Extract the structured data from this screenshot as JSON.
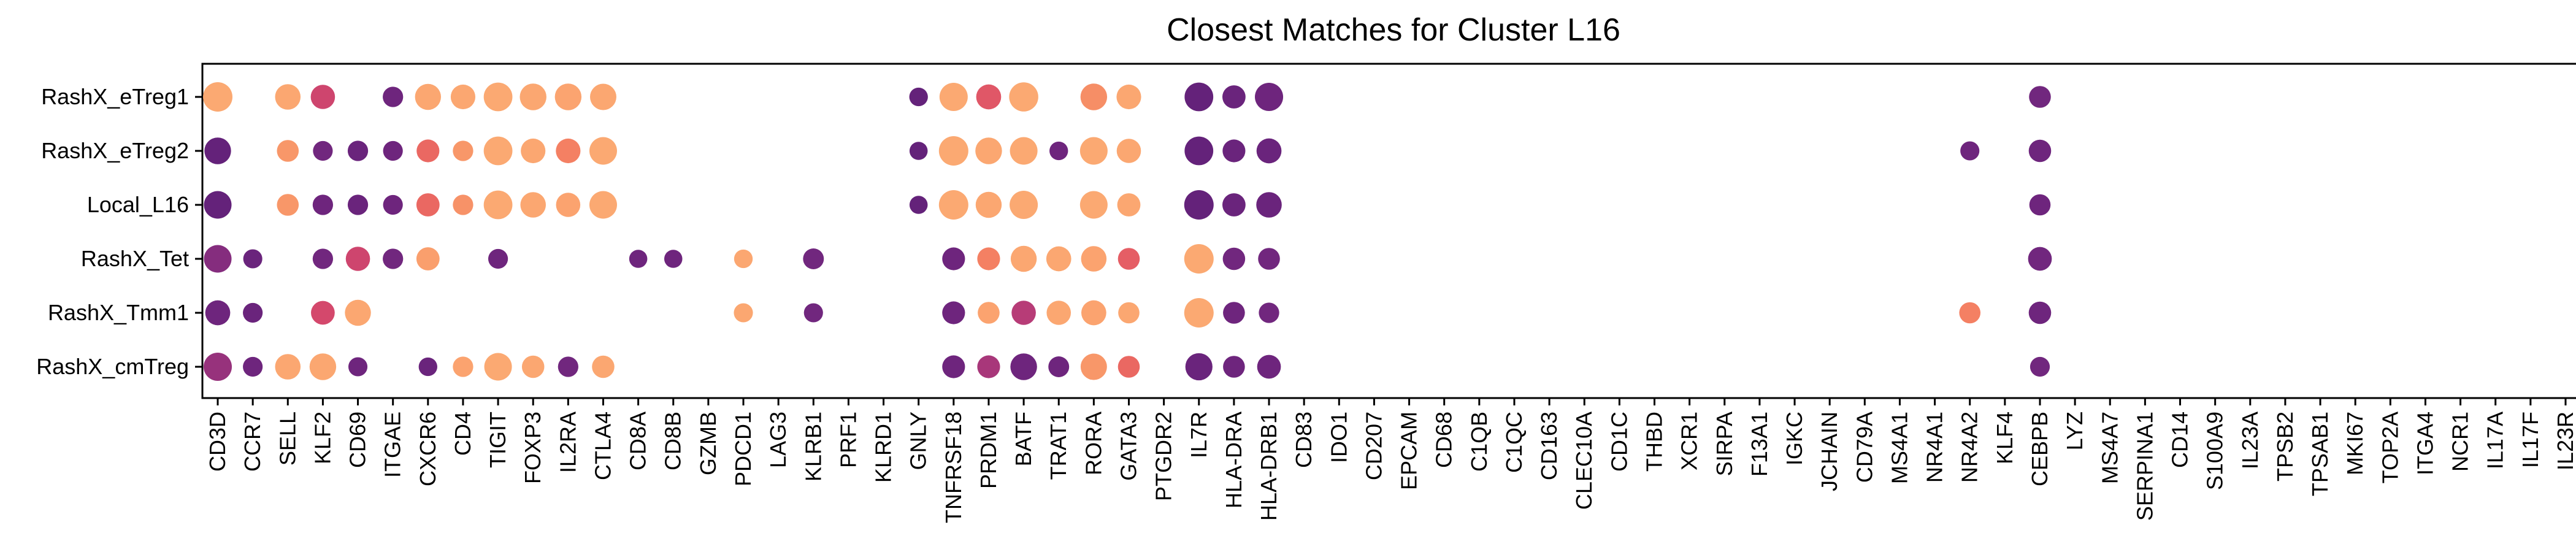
{
  "chart_data": {
    "type": "scatter",
    "title": "Closest Matches for Cluster L16",
    "xlabel": "",
    "ylabel": "",
    "rows": [
      "RashX_eTreg1",
      "RashX_eTreg2",
      "Local_L16",
      "RashX_Tet",
      "RashX_Tmm1",
      "RashX_cmTreg"
    ],
    "columns": [
      "CD3D",
      "CCR7",
      "SELL",
      "KLF2",
      "CD69",
      "ITGAE",
      "CXCR6",
      "CD4",
      "TIGIT",
      "FOXP3",
      "IL2RA",
      "CTLA4",
      "CD8A",
      "CD8B",
      "GZMB",
      "PDCD1",
      "LAG3",
      "KLRB1",
      "PRF1",
      "KLRD1",
      "GNLY",
      "TNFRSF18",
      "PRDM1",
      "BATF",
      "TRAT1",
      "RORA",
      "GATA3",
      "PTGDR2",
      "IL7R",
      "HLA-DRA",
      "HLA-DRB1",
      "CD83",
      "IDO1",
      "CD207",
      "EPCAM",
      "CD68",
      "C1QB",
      "C1QC",
      "CD163",
      "CLEC10A",
      "CD1C",
      "THBD",
      "XCR1",
      "SIRPA",
      "F13A1",
      "IGKC",
      "JCHAIN",
      "CD79A",
      "MS4A1",
      "NR4A1",
      "NR4A2",
      "KLF4",
      "CEBPB",
      "LYZ",
      "MS4A7",
      "SERPINA1",
      "CD14",
      "S100A9",
      "IL23A",
      "TPSB2",
      "TPSAB1",
      "MKI67",
      "TOP2A",
      "ITGA4",
      "NCR1",
      "IL17A",
      "IL17F",
      "IL23R"
    ],
    "encoding": {
      "size": "fraction of cells expressing (0-1)",
      "color": "mean expression (0 = dark purple, 1 = light orange)",
      "palette": [
        "#5b1e78",
        "#7a2a80",
        "#b33a78",
        "#d94a6a",
        "#f1745f",
        "#f99a6a",
        "#fcac74"
      ]
    },
    "points": [
      {
        "row": "RashX_eTreg1",
        "col": "CD3D",
        "size": 1.0,
        "color": 0.97
      },
      {
        "row": "RashX_eTreg1",
        "col": "SELL",
        "size": 0.75,
        "color": 0.95
      },
      {
        "row": "RashX_eTreg1",
        "col": "KLF2",
        "size": 0.68,
        "color": 0.45
      },
      {
        "row": "RashX_eTreg1",
        "col": "ITGAE",
        "size": 0.48,
        "color": 0.1
      },
      {
        "row": "RashX_eTreg1",
        "col": "CXCR6",
        "size": 0.78,
        "color": 0.95
      },
      {
        "row": "RashX_eTreg1",
        "col": "CD4",
        "size": 0.7,
        "color": 0.95
      },
      {
        "row": "RashX_eTreg1",
        "col": "TIGIT",
        "size": 0.95,
        "color": 0.97
      },
      {
        "row": "RashX_eTreg1",
        "col": "FOXP3",
        "size": 0.82,
        "color": 0.95
      },
      {
        "row": "RashX_eTreg1",
        "col": "IL2RA",
        "size": 0.82,
        "color": 0.93
      },
      {
        "row": "RashX_eTreg1",
        "col": "CTLA4",
        "size": 0.8,
        "color": 0.95
      },
      {
        "row": "RashX_eTreg1",
        "col": "GNLY",
        "size": 0.4,
        "color": 0.05
      },
      {
        "row": "RashX_eTreg1",
        "col": "TNFRSF18",
        "size": 0.92,
        "color": 0.97
      },
      {
        "row": "RashX_eTreg1",
        "col": "PRDM1",
        "size": 0.72,
        "color": 0.55
      },
      {
        "row": "RashX_eTreg1",
        "col": "BATF",
        "size": 0.98,
        "color": 0.97
      },
      {
        "row": "RashX_eTreg1",
        "col": "RORA",
        "size": 0.82,
        "color": 0.78
      },
      {
        "row": "RashX_eTreg1",
        "col": "GATA3",
        "size": 0.7,
        "color": 0.95
      },
      {
        "row": "RashX_eTreg1",
        "col": "IL7R",
        "size": 0.95,
        "color": 0.05
      },
      {
        "row": "RashX_eTreg1",
        "col": "HLA-DRA",
        "size": 0.62,
        "color": 0.08
      },
      {
        "row": "RashX_eTreg1",
        "col": "HLA-DRB1",
        "size": 0.92,
        "color": 0.1
      },
      {
        "row": "RashX_eTreg1",
        "col": "CEBPB",
        "size": 0.55,
        "color": 0.12
      },
      {
        "row": "RashX_eTreg2",
        "col": "CD3D",
        "size": 0.82,
        "color": 0.05
      },
      {
        "row": "RashX_eTreg2",
        "col": "SELL",
        "size": 0.55,
        "color": 0.82
      },
      {
        "row": "RashX_eTreg2",
        "col": "KLF2",
        "size": 0.45,
        "color": 0.12
      },
      {
        "row": "RashX_eTreg2",
        "col": "CD69",
        "size": 0.48,
        "color": 0.08
      },
      {
        "row": "RashX_eTreg2",
        "col": "ITGAE",
        "size": 0.45,
        "color": 0.1
      },
      {
        "row": "RashX_eTreg2",
        "col": "CXCR6",
        "size": 0.6,
        "color": 0.62
      },
      {
        "row": "RashX_eTreg2",
        "col": "CD4",
        "size": 0.48,
        "color": 0.82
      },
      {
        "row": "RashX_eTreg2",
        "col": "TIGIT",
        "size": 0.95,
        "color": 0.97
      },
      {
        "row": "RashX_eTreg2",
        "col": "FOXP3",
        "size": 0.7,
        "color": 0.95
      },
      {
        "row": "RashX_eTreg2",
        "col": "IL2RA",
        "size": 0.7,
        "color": 0.72
      },
      {
        "row": "RashX_eTreg2",
        "col": "CTLA4",
        "size": 0.88,
        "color": 0.97
      },
      {
        "row": "RashX_eTreg2",
        "col": "GNLY",
        "size": 0.38,
        "color": 0.05
      },
      {
        "row": "RashX_eTreg2",
        "col": "TNFRSF18",
        "size": 1.0,
        "color": 0.97
      },
      {
        "row": "RashX_eTreg2",
        "col": "PRDM1",
        "size": 0.82,
        "color": 0.95
      },
      {
        "row": "RashX_eTreg2",
        "col": "BATF",
        "size": 0.88,
        "color": 0.97
      },
      {
        "row": "RashX_eTreg2",
        "col": "TRAT1",
        "size": 0.4,
        "color": 0.1
      },
      {
        "row": "RashX_eTreg2",
        "col": "RORA",
        "size": 0.88,
        "color": 0.97
      },
      {
        "row": "RashX_eTreg2",
        "col": "GATA3",
        "size": 0.68,
        "color": 0.95
      },
      {
        "row": "RashX_eTreg2",
        "col": "IL7R",
        "size": 0.95,
        "color": 0.05
      },
      {
        "row": "RashX_eTreg2",
        "col": "HLA-DRA",
        "size": 0.6,
        "color": 0.08
      },
      {
        "row": "RashX_eTreg2",
        "col": "HLA-DRB1",
        "size": 0.72,
        "color": 0.08
      },
      {
        "row": "RashX_eTreg2",
        "col": "NR4A2",
        "size": 0.42,
        "color": 0.1
      },
      {
        "row": "RashX_eTreg2",
        "col": "CEBPB",
        "size": 0.58,
        "color": 0.1
      },
      {
        "row": "Local_L16",
        "col": "CD3D",
        "size": 0.88,
        "color": 0.05
      },
      {
        "row": "Local_L16",
        "col": "SELL",
        "size": 0.55,
        "color": 0.82
      },
      {
        "row": "Local_L16",
        "col": "KLF2",
        "size": 0.48,
        "color": 0.1
      },
      {
        "row": "Local_L16",
        "col": "CD69",
        "size": 0.48,
        "color": 0.08
      },
      {
        "row": "Local_L16",
        "col": "ITGAE",
        "size": 0.45,
        "color": 0.1
      },
      {
        "row": "Local_L16",
        "col": "CXCR6",
        "size": 0.62,
        "color": 0.62
      },
      {
        "row": "Local_L16",
        "col": "CD4",
        "size": 0.48,
        "color": 0.8
      },
      {
        "row": "Local_L16",
        "col": "TIGIT",
        "size": 0.95,
        "color": 0.97
      },
      {
        "row": "Local_L16",
        "col": "FOXP3",
        "size": 0.75,
        "color": 0.95
      },
      {
        "row": "Local_L16",
        "col": "IL2RA",
        "size": 0.68,
        "color": 0.92
      },
      {
        "row": "Local_L16",
        "col": "CTLA4",
        "size": 0.88,
        "color": 0.97
      },
      {
        "row": "Local_L16",
        "col": "GNLY",
        "size": 0.38,
        "color": 0.05
      },
      {
        "row": "Local_L16",
        "col": "TNFRSF18",
        "size": 1.0,
        "color": 0.97
      },
      {
        "row": "Local_L16",
        "col": "PRDM1",
        "size": 0.78,
        "color": 0.95
      },
      {
        "row": "Local_L16",
        "col": "BATF",
        "size": 0.92,
        "color": 0.97
      },
      {
        "row": "Local_L16",
        "col": "RORA",
        "size": 0.88,
        "color": 0.97
      },
      {
        "row": "Local_L16",
        "col": "GATA3",
        "size": 0.62,
        "color": 0.95
      },
      {
        "row": "Local_L16",
        "col": "IL7R",
        "size": 1.0,
        "color": 0.05
      },
      {
        "row": "Local_L16",
        "col": "HLA-DRA",
        "size": 0.62,
        "color": 0.08
      },
      {
        "row": "Local_L16",
        "col": "HLA-DRB1",
        "size": 0.75,
        "color": 0.08
      },
      {
        "row": "Local_L16",
        "col": "CEBPB",
        "size": 0.52,
        "color": 0.1
      },
      {
        "row": "RashX_Tet",
        "col": "CD3D",
        "size": 0.88,
        "color": 0.2
      },
      {
        "row": "RashX_Tet",
        "col": "CCR7",
        "size": 0.42,
        "color": 0.08
      },
      {
        "row": "RashX_Tet",
        "col": "KLF2",
        "size": 0.48,
        "color": 0.12
      },
      {
        "row": "RashX_Tet",
        "col": "CD69",
        "size": 0.68,
        "color": 0.45
      },
      {
        "row": "RashX_Tet",
        "col": "ITGAE",
        "size": 0.48,
        "color": 0.12
      },
      {
        "row": "RashX_Tet",
        "col": "CXCR6",
        "size": 0.62,
        "color": 0.88
      },
      {
        "row": "RashX_Tet",
        "col": "TIGIT",
        "size": 0.45,
        "color": 0.1
      },
      {
        "row": "RashX_Tet",
        "col": "CD8A",
        "size": 0.38,
        "color": 0.1
      },
      {
        "row": "RashX_Tet",
        "col": "CD8B",
        "size": 0.38,
        "color": 0.1
      },
      {
        "row": "RashX_Tet",
        "col": "PDCD1",
        "size": 0.4,
        "color": 0.95
      },
      {
        "row": "RashX_Tet",
        "col": "KLRB1",
        "size": 0.5,
        "color": 0.12
      },
      {
        "row": "RashX_Tet",
        "col": "TNFRSF18",
        "size": 0.6,
        "color": 0.1
      },
      {
        "row": "RashX_Tet",
        "col": "PRDM1",
        "size": 0.6,
        "color": 0.72
      },
      {
        "row": "RashX_Tet",
        "col": "BATF",
        "size": 0.78,
        "color": 0.95
      },
      {
        "row": "RashX_Tet",
        "col": "TRAT1",
        "size": 0.72,
        "color": 0.95
      },
      {
        "row": "RashX_Tet",
        "col": "RORA",
        "size": 0.75,
        "color": 0.92
      },
      {
        "row": "RashX_Tet",
        "col": "GATA3",
        "size": 0.55,
        "color": 0.58
      },
      {
        "row": "RashX_Tet",
        "col": "IL7R",
        "size": 1.0,
        "color": 0.97
      },
      {
        "row": "RashX_Tet",
        "col": "HLA-DRA",
        "size": 0.58,
        "color": 0.12
      },
      {
        "row": "RashX_Tet",
        "col": "HLA-DRB1",
        "size": 0.55,
        "color": 0.12
      },
      {
        "row": "RashX_Tet",
        "col": "CEBPB",
        "size": 0.65,
        "color": 0.12
      },
      {
        "row": "RashX_Tmm1",
        "col": "CD3D",
        "size": 0.72,
        "color": 0.1
      },
      {
        "row": "RashX_Tmm1",
        "col": "CCR7",
        "size": 0.45,
        "color": 0.08
      },
      {
        "row": "RashX_Tmm1",
        "col": "KLF2",
        "size": 0.65,
        "color": 0.48
      },
      {
        "row": "RashX_Tmm1",
        "col": "CD69",
        "size": 0.78,
        "color": 0.95
      },
      {
        "row": "RashX_Tmm1",
        "col": "PDCD1",
        "size": 0.42,
        "color": 0.95
      },
      {
        "row": "RashX_Tmm1",
        "col": "KLRB1",
        "size": 0.42,
        "color": 0.12
      },
      {
        "row": "RashX_Tmm1",
        "col": "TNFRSF18",
        "size": 0.6,
        "color": 0.1
      },
      {
        "row": "RashX_Tmm1",
        "col": "PRDM1",
        "size": 0.55,
        "color": 0.92
      },
      {
        "row": "RashX_Tmm1",
        "col": "BATF",
        "size": 0.68,
        "color": 0.35
      },
      {
        "row": "RashX_Tmm1",
        "col": "TRAT1",
        "size": 0.68,
        "color": 0.95
      },
      {
        "row": "RashX_Tmm1",
        "col": "RORA",
        "size": 0.72,
        "color": 0.92
      },
      {
        "row": "RashX_Tmm1",
        "col": "GATA3",
        "size": 0.52,
        "color": 0.95
      },
      {
        "row": "RashX_Tmm1",
        "col": "IL7R",
        "size": 1.0,
        "color": 0.97
      },
      {
        "row": "RashX_Tmm1",
        "col": "HLA-DRA",
        "size": 0.55,
        "color": 0.1
      },
      {
        "row": "RashX_Tmm1",
        "col": "HLA-DRB1",
        "size": 0.48,
        "color": 0.12
      },
      {
        "row": "RashX_Tmm1",
        "col": "NR4A2",
        "size": 0.52,
        "color": 0.72
      },
      {
        "row": "RashX_Tmm1",
        "col": "CEBPB",
        "size": 0.58,
        "color": 0.1
      },
      {
        "row": "RashX_cmTreg",
        "col": "CD3D",
        "size": 0.92,
        "color": 0.25
      },
      {
        "row": "RashX_cmTreg",
        "col": "CCR7",
        "size": 0.45,
        "color": 0.1
      },
      {
        "row": "RashX_cmTreg",
        "col": "SELL",
        "size": 0.75,
        "color": 0.95
      },
      {
        "row": "RashX_cmTreg",
        "col": "KLF2",
        "size": 0.82,
        "color": 0.95
      },
      {
        "row": "RashX_cmTreg",
        "col": "CD69",
        "size": 0.42,
        "color": 0.1
      },
      {
        "row": "RashX_cmTreg",
        "col": "CXCR6",
        "size": 0.4,
        "color": 0.08
      },
      {
        "row": "RashX_cmTreg",
        "col": "CD4",
        "size": 0.48,
        "color": 0.92
      },
      {
        "row": "RashX_cmTreg",
        "col": "TIGIT",
        "size": 0.88,
        "color": 0.97
      },
      {
        "row": "RashX_cmTreg",
        "col": "FOXP3",
        "size": 0.58,
        "color": 0.95
      },
      {
        "row": "RashX_cmTreg",
        "col": "IL2RA",
        "size": 0.48,
        "color": 0.12
      },
      {
        "row": "RashX_cmTreg",
        "col": "CTLA4",
        "size": 0.58,
        "color": 0.95
      },
      {
        "row": "RashX_cmTreg",
        "col": "TNFRSF18",
        "size": 0.6,
        "color": 0.1
      },
      {
        "row": "RashX_cmTreg",
        "col": "PRDM1",
        "size": 0.6,
        "color": 0.3
      },
      {
        "row": "RashX_cmTreg",
        "col": "BATF",
        "size": 0.82,
        "color": 0.1
      },
      {
        "row": "RashX_cmTreg",
        "col": "TRAT1",
        "size": 0.5,
        "color": 0.1
      },
      {
        "row": "RashX_cmTreg",
        "col": "RORA",
        "size": 0.8,
        "color": 0.82
      },
      {
        "row": "RashX_cmTreg",
        "col": "GATA3",
        "size": 0.55,
        "color": 0.62
      },
      {
        "row": "RashX_cmTreg",
        "col": "IL7R",
        "size": 0.85,
        "color": 0.08
      },
      {
        "row": "RashX_cmTreg",
        "col": "HLA-DRA",
        "size": 0.55,
        "color": 0.1
      },
      {
        "row": "RashX_cmTreg",
        "col": "HLA-DRB1",
        "size": 0.65,
        "color": 0.1
      },
      {
        "row": "RashX_cmTreg",
        "col": "CEBPB",
        "size": 0.45,
        "color": 0.12
      }
    ]
  }
}
